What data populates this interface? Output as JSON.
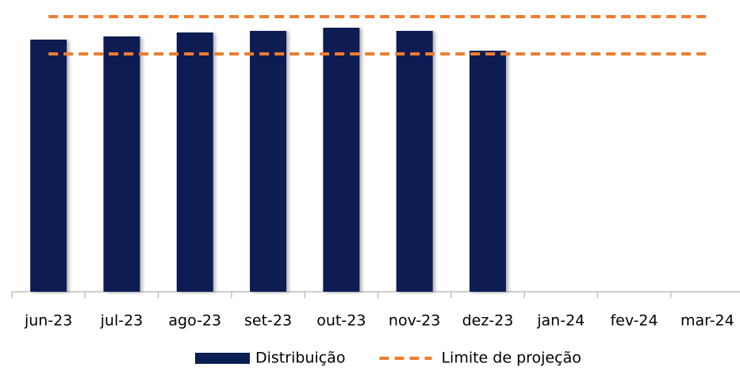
{
  "chart_data": {
    "type": "bar",
    "categories": [
      "jun-23",
      "jul-23",
      "ago-23",
      "set-23",
      "out-23",
      "nov-23",
      "dez-23",
      "jan-24",
      "fev-24",
      "mar-24"
    ],
    "series": [
      {
        "name": "Distribuição",
        "type": "bar",
        "color": "#0c1f52",
        "values": [
          318,
          322,
          327,
          329,
          333,
          329,
          304,
          null,
          null,
          null
        ]
      },
      {
        "name": "Limite de projeção",
        "type": "line",
        "color": "#ee7d31",
        "dashed": true,
        "bounds": [
          {
            "values": [
              347,
              347,
              347,
              347,
              347,
              347,
              347,
              347,
              347,
              347
            ]
          },
          {
            "values": [
              300,
              300,
              300,
              300,
              300,
              300,
              300,
              300,
              300,
              300
            ]
          }
        ]
      }
    ],
    "ylim": [
      0,
      350
    ],
    "legend": "bottom"
  }
}
